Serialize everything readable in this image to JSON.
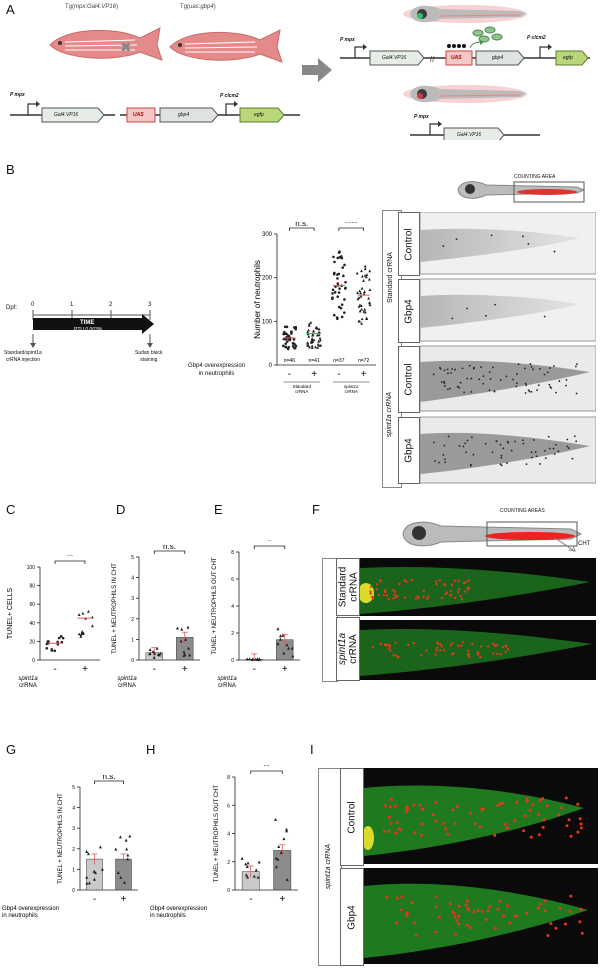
{
  "panel_letters": {
    "A": "A",
    "B": "B",
    "C": "C",
    "D": "D",
    "E": "E",
    "F": "F",
    "G": "G",
    "H": "H",
    "I": "I"
  },
  "panelA": {
    "fish1_label_pre": "Tg(",
    "fish1_label_it": "mpx:Gal4.VP16",
    "fish1_label_post": ")",
    "fish2_label_pre": "Tg(",
    "fish2_label_it": "uas:gbp4",
    "fish2_label_post": ")",
    "p_mpx": "P mpx",
    "gal4": "Gal4.VP16",
    "uas": "UAS",
    "gbp4": "gbp4",
    "p_clcm2": "P clcm2",
    "egfp": "egfp",
    "cross": "✖"
  },
  "panelB": {
    "dpf_label": "Dpf:",
    "ticks": [
      "0",
      "1",
      "2",
      "3"
    ],
    "time": "TIME",
    "ptu": "PTU 0,003%",
    "injection": "Standard/spint1a crRNA injection",
    "injection_line1": "Standard/spint1a",
    "injection_line2": "crRNA injection",
    "sudan_line1": "Sudan black",
    "sudan_line2": "staining",
    "counting_area": "COUNTING AREA",
    "overexp_line1": "Gbp4 overexpression",
    "overexp_line2": "in neutrophils",
    "group_standard": "Standard crRNA",
    "group_spint": "spint1a crRNA",
    "row_control": "Control",
    "row_gbp4": "Gbp4"
  },
  "panelF": {
    "counting_areas": "COUNTING AREAS",
    "cht": "CHT",
    "standard_line1": "Standard",
    "standard_line2": "crRNA",
    "spint_line1": "spint1a",
    "spint_line2": "crRNA"
  },
  "panelI": {
    "group": "spint1a crRNA",
    "row_control": "Control",
    "row_gbp4": "Gbp4"
  },
  "chart_data": [
    {
      "id": "B",
      "type": "scatter",
      "ylabel": "Number of neutrophils",
      "ylim": [
        0,
        300
      ],
      "yticks": [
        0,
        100,
        200,
        300
      ],
      "categories": [
        "-",
        "+",
        "-",
        "+"
      ],
      "group_labels": [
        "Standard crRNA",
        "spint1a crRNA"
      ],
      "n_labels": [
        "n=46",
        "n=41",
        "n=37",
        "n=72"
      ],
      "means": [
        62,
        72,
        182,
        160
      ],
      "significance": [
        {
          "between": [
            0,
            1
          ],
          "label": "n.s."
        },
        {
          "between": [
            2,
            3
          ],
          "label": "****"
        }
      ]
    },
    {
      "id": "C",
      "type": "scatter",
      "ylabel": "TUNEL+ CELLS",
      "ylim": [
        0,
        100
      ],
      "yticks": [
        0,
        20,
        40,
        60,
        80,
        100
      ],
      "categories": [
        "-",
        "+"
      ],
      "xlabel_line1": "spint1a",
      "xlabel_line2": "crRNA",
      "means": [
        18,
        45
      ],
      "significance": [
        {
          "between": [
            0,
            1
          ],
          "label": "**"
        }
      ]
    },
    {
      "id": "D",
      "type": "bar",
      "ylabel": "TUNEL + NEUTROPHILS IN CHT",
      "ylim": [
        0,
        5
      ],
      "yticks": [
        0,
        1,
        2,
        3,
        4,
        5
      ],
      "categories": [
        "-",
        "+"
      ],
      "xlabel_line1": "spint1a",
      "xlabel_line2": "crRNA",
      "values": [
        0.35,
        1.1
      ],
      "significance": [
        {
          "between": [
            0,
            1
          ],
          "label": "n.s."
        }
      ]
    },
    {
      "id": "E",
      "type": "bar",
      "ylabel": "TUNEL + NEUTROPHILS OUT CHT",
      "ylim": [
        0,
        8
      ],
      "yticks": [
        0,
        2,
        4,
        6,
        8
      ],
      "categories": [
        "-",
        "+"
      ],
      "xlabel_line1": "spint1a",
      "xlabel_line2": "crRNA",
      "values": [
        0.05,
        1.5
      ],
      "significance": [
        {
          "between": [
            0,
            1
          ],
          "label": "*"
        }
      ]
    },
    {
      "id": "G",
      "type": "bar",
      "ylabel": "TUNEL + NEUTROPHILS IN CHT",
      "ylim": [
        0,
        5
      ],
      "yticks": [
        0,
        1,
        2,
        3,
        4,
        5
      ],
      "categories": [
        "-",
        "+"
      ],
      "xlabel_line1": "Gbp4 overexpression",
      "xlabel_line2": "in neutrophils",
      "values": [
        1.5,
        1.5
      ],
      "significance": [
        {
          "between": [
            0,
            1
          ],
          "label": "n.s."
        }
      ]
    },
    {
      "id": "H",
      "type": "bar",
      "ylabel": "TUNEL + NEUTROPHILS OUT CHT",
      "ylim": [
        0,
        8
      ],
      "yticks": [
        0,
        2,
        4,
        6,
        8
      ],
      "categories": [
        "-",
        "+"
      ],
      "xlabel_line1": "Gbp4 overexpression",
      "xlabel_line2": "in neutrophils",
      "values": [
        1.3,
        2.8
      ],
      "significance": [
        {
          "between": [
            0,
            1
          ],
          "label": "**"
        }
      ]
    }
  ]
}
